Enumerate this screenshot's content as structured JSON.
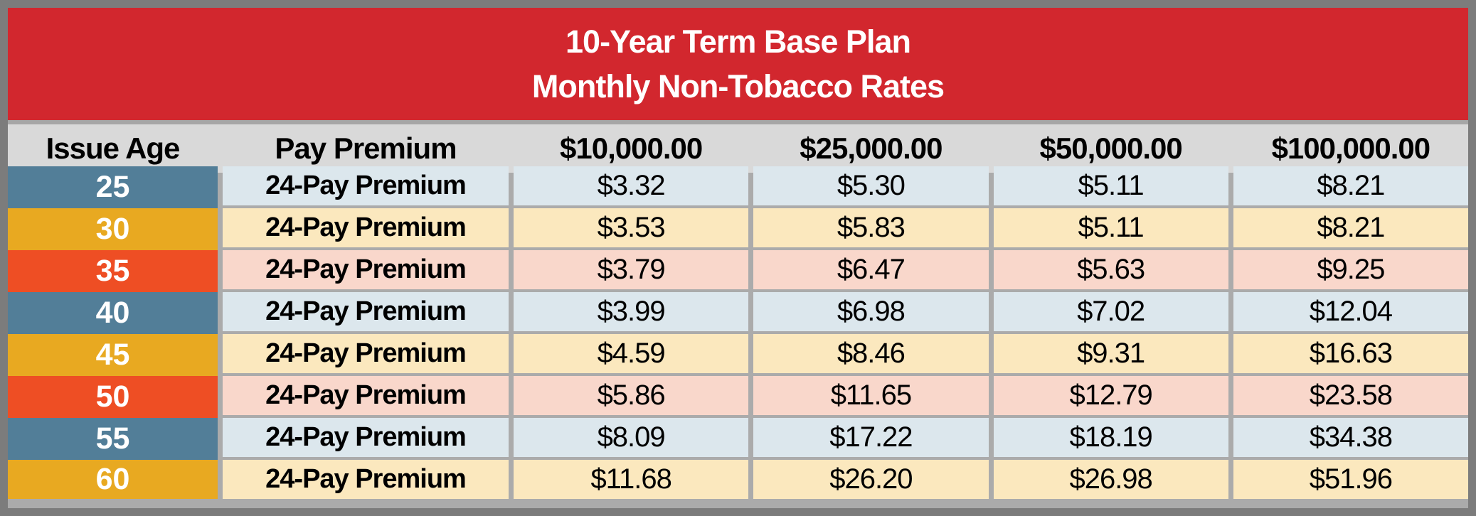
{
  "title": {
    "line1": "10-Year Term Base Plan",
    "line2": "Monthly Non-Tobacco Rates"
  },
  "table": {
    "columns": [
      "Issue Age",
      "Pay Premium",
      "$10,000.00",
      "$25,000.00",
      "$50,000.00",
      "$100,000.00"
    ],
    "rows": [
      {
        "age": "25",
        "premium": "24-Pay Premium",
        "values": [
          "$3.32",
          "$5.30",
          "$5.11",
          "$8.21"
        ],
        "theme": "blue"
      },
      {
        "age": "30",
        "premium": "24-Pay Premium",
        "values": [
          "$3.53",
          "$5.83",
          "$5.11",
          "$8.21"
        ],
        "theme": "gold"
      },
      {
        "age": "35",
        "premium": "24-Pay Premium",
        "values": [
          "$3.79",
          "$6.47",
          "$5.63",
          "$9.25"
        ],
        "theme": "orange"
      },
      {
        "age": "40",
        "premium": "24-Pay Premium",
        "values": [
          "$3.99",
          "$6.98",
          "$7.02",
          "$12.04"
        ],
        "theme": "blue"
      },
      {
        "age": "45",
        "premium": "24-Pay Premium",
        "values": [
          "$4.59",
          "$8.46",
          "$9.31",
          "$16.63"
        ],
        "theme": "gold"
      },
      {
        "age": "50",
        "premium": "24-Pay Premium",
        "values": [
          "$5.86",
          "$11.65",
          "$12.79",
          "$23.58"
        ],
        "theme": "orange"
      },
      {
        "age": "55",
        "premium": "24-Pay Premium",
        "values": [
          "$8.09",
          "$17.22",
          "$18.19",
          "$34.38"
        ],
        "theme": "blue"
      },
      {
        "age": "60",
        "premium": "24-Pay Premium",
        "values": [
          "$11.68",
          "$26.20",
          "$26.98",
          "$51.96"
        ],
        "theme": "gold"
      }
    ]
  },
  "colors": {
    "banner_bg": "#D2272E",
    "banner_text": "#FFFFFF",
    "header_bg": "#D9D9D9",
    "header_text": "#000000",
    "frame_border": "#7C7C7C",
    "gridline": "#ABABAB",
    "strip": "#A6A6A6",
    "themes": {
      "blue": {
        "age_bg": "#527E98",
        "row_bg": "#DCE7ED"
      },
      "gold": {
        "age_bg": "#E8A921",
        "row_bg": "#FBE8BE"
      },
      "orange": {
        "age_bg": "#EE4E24",
        "row_bg": "#F9D7CB"
      }
    }
  }
}
